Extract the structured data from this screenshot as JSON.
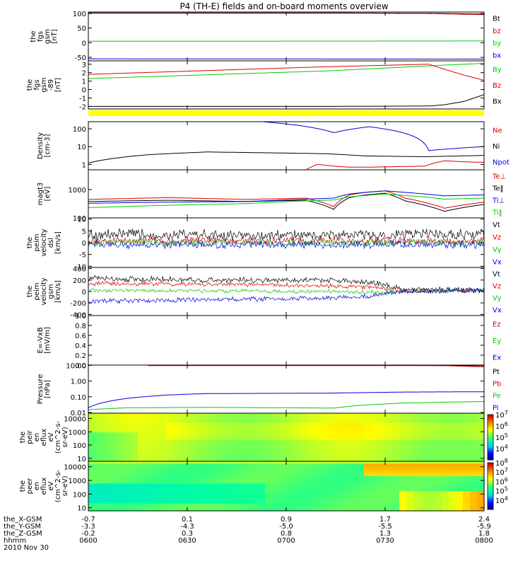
{
  "title": "P4 (TH-E) fields and on-board moments overview",
  "colors": {
    "black": "#000000",
    "red": "#dd0000",
    "green": "#00cc00",
    "blue": "#0000dd",
    "yellow": "#ffff00"
  },
  "chart_data": [
    {
      "type": "line",
      "ylabel": [
        "the",
        "fgs",
        "gsm",
        "[nT]"
      ],
      "yticks": [
        {
          "v": 100,
          "label": "100"
        },
        {
          "v": 50,
          "label": "50"
        },
        {
          "v": 0,
          "label": "0"
        },
        {
          "v": -50,
          "label": "-50"
        }
      ],
      "ylim": [
        -62,
        105
      ],
      "grid": false,
      "series": [
        {
          "name": "Bt",
          "color": "black",
          "x": [
            0,
            0.6,
            0.85,
            1
          ],
          "y": [
            102,
            102,
            101,
            98
          ]
        },
        {
          "name": "bz",
          "color": "red",
          "x": [
            0,
            0.6,
            0.85,
            1
          ],
          "y": [
            101,
            101,
            100,
            96
          ]
        },
        {
          "name": "by",
          "color": "green",
          "x": [
            0,
            0.6,
            1
          ],
          "y": [
            5,
            5.5,
            6
          ]
        },
        {
          "name": "bx",
          "color": "blue",
          "x": [
            0,
            1
          ],
          "y": [
            -55,
            -56
          ]
        }
      ]
    },
    {
      "type": "line",
      "ylabel": [
        "the",
        "fgs",
        "gsm",
        "-89",
        "[nT]"
      ],
      "yticks": [
        {
          "v": 3,
          "label": "3"
        },
        {
          "v": 2,
          "label": "2"
        },
        {
          "v": 1,
          "label": "1"
        },
        {
          "v": 0,
          "label": "0"
        },
        {
          "v": -1,
          "label": "-1"
        },
        {
          "v": -2,
          "label": "-2"
        }
      ],
      "ylim": [
        -2.3,
        3.4
      ],
      "grid": false,
      "series": [
        {
          "name": "By",
          "color": "green",
          "x": [
            0,
            0.6,
            0.86,
            0.9,
            0.95,
            1
          ],
          "y": [
            1.3,
            2.2,
            2.8,
            2.9,
            3.0,
            3.1
          ]
        },
        {
          "name": "Bz",
          "color": "red",
          "x": [
            0,
            0.6,
            0.86,
            0.9,
            0.95,
            1
          ],
          "y": [
            1.8,
            2.7,
            3.0,
            2.4,
            1.7,
            1.1
          ]
        },
        {
          "name": "Bx",
          "color": "black",
          "x": [
            0,
            0.6,
            0.86,
            0.9,
            0.95,
            1
          ],
          "y": [
            -2.0,
            -2.0,
            -1.95,
            -1.8,
            -1.4,
            -0.6
          ]
        }
      ],
      "band_color": "yellow"
    },
    {
      "type": "line",
      "scale": "log",
      "ylabel": [
        "Density",
        "[cm-3]"
      ],
      "yticks": [
        {
          "v": 100,
          "label": "100"
        },
        {
          "v": 10,
          "label": "10"
        },
        {
          "v": 1,
          "label": "1"
        }
      ],
      "ylim": [
        0.5,
        250
      ],
      "grid": false,
      "series": [
        {
          "name": "Ne",
          "color": "red",
          "x": [
            0,
            0.3,
            0.55,
            0.58,
            0.62,
            0.66,
            0.7,
            0.85,
            0.9,
            0.95,
            1
          ],
          "y": [
            0.5,
            0.5,
            0.5,
            1.0,
            0.8,
            0.7,
            0.7,
            0.8,
            1.6,
            1.4,
            1.3
          ]
        },
        {
          "name": "Ni",
          "color": "black",
          "x": [
            0,
            0.15,
            0.3,
            0.45,
            0.6,
            0.7,
            0.85,
            1
          ],
          "y": [
            1.2,
            3.5,
            5,
            4.5,
            4,
            3.0,
            2.7,
            3.2
          ]
        },
        {
          "name": "Npot",
          "color": "blue",
          "x": [
            0.44,
            0.62,
            0.71,
            0.86,
            1
          ],
          "y": [
            250,
            60,
            130,
            6,
            10
          ]
        }
      ]
    },
    {
      "type": "line",
      "scale": "log",
      "ylabel": [
        "magt3",
        "[eV]"
      ],
      "yticks": [
        {
          "v": 1000,
          "label": "1000"
        },
        {
          "v": 100,
          "label": "100"
        }
      ],
      "ylim": [
        100,
        5000
      ],
      "grid": false,
      "series": [
        {
          "name": "Te⊥",
          "color": "red",
          "x": [
            0,
            0.2,
            0.4,
            0.55,
            0.62,
            0.66,
            0.7,
            0.75,
            0.8,
            0.85,
            0.9,
            1
          ],
          "y": [
            450,
            520,
            450,
            500,
            250,
            650,
            800,
            900,
            500,
            350,
            220,
            360
          ]
        },
        {
          "name": "Te‖",
          "color": "black",
          "x": [
            0,
            0.2,
            0.4,
            0.55,
            0.62,
            0.66,
            0.7,
            0.75,
            0.8,
            0.85,
            0.9,
            1
          ],
          "y": [
            380,
            420,
            380,
            420,
            200,
            520,
            650,
            750,
            400,
            280,
            170,
            300
          ]
        },
        {
          "name": "Ti⊥",
          "color": "blue",
          "x": [
            0,
            0.2,
            0.4,
            0.55,
            0.62,
            0.66,
            0.7,
            0.75,
            0.8,
            0.85,
            0.9,
            1
          ],
          "y": [
            330,
            360,
            380,
            460,
            500,
            700,
            800,
            900,
            800,
            700,
            600,
            650
          ]
        },
        {
          "name": "Ti‖",
          "color": "green",
          "x": [
            0,
            0.2,
            0.4,
            0.55,
            0.62,
            0.66,
            0.7,
            0.75,
            0.8,
            0.85,
            0.9,
            1
          ],
          "y": [
            230,
            280,
            320,
            400,
            430,
            550,
            620,
            700,
            620,
            550,
            460,
            500
          ]
        }
      ]
    },
    {
      "type": "line",
      "noisy": true,
      "ylabel": [
        "the",
        "peim",
        "velocity",
        "dsl",
        "[km/s]"
      ],
      "yticks": [
        {
          "v": 10,
          "label": "10"
        },
        {
          "v": 5,
          "label": "5"
        },
        {
          "v": 0,
          "label": "0"
        },
        {
          "v": -5,
          "label": "-5"
        },
        {
          "v": -10,
          "label": "-10"
        }
      ],
      "ylim": [
        -10.5,
        10.5
      ],
      "grid": false,
      "series": [
        {
          "name": "Vt",
          "color": "black",
          "x": [
            0,
            0.5,
            1
          ],
          "y": [
            3.5,
            3.0,
            3.5
          ],
          "amp": 2.5
        },
        {
          "name": "Vz",
          "color": "red",
          "x": [
            0,
            1
          ],
          "y": [
            0.8,
            0.8
          ],
          "amp": 1.6
        },
        {
          "name": "Vy",
          "color": "green",
          "x": [
            0,
            1
          ],
          "y": [
            0,
            0
          ],
          "amp": 1.5
        },
        {
          "name": "Vx",
          "color": "blue",
          "x": [
            0,
            1
          ],
          "y": [
            -0.8,
            -0.8
          ],
          "amp": 1.8
        }
      ]
    },
    {
      "type": "line",
      "noisy": true,
      "ylabel": [
        "the",
        "peim",
        "velocity",
        "gsm",
        "[km/s]"
      ],
      "yticks": [
        {
          "v": 400,
          "label": "400"
        },
        {
          "v": 200,
          "label": "200"
        },
        {
          "v": 0,
          "label": "0"
        },
        {
          "v": -200,
          "label": "-200"
        },
        {
          "v": -400,
          "label": "-400"
        }
      ],
      "ylim": [
        -420,
        420
      ],
      "grid": false,
      "series": [
        {
          "name": "Vt",
          "color": "black",
          "x": [
            0,
            0.3,
            0.6,
            0.7,
            0.8,
            1
          ],
          "y": [
            230,
            200,
            200,
            180,
            30,
            30
          ],
          "amp": 55
        },
        {
          "name": "Vz",
          "color": "red",
          "x": [
            0,
            0.3,
            0.6,
            0.7,
            0.8,
            1
          ],
          "y": [
            140,
            130,
            100,
            80,
            10,
            20
          ],
          "amp": 40
        },
        {
          "name": "Vy",
          "color": "green",
          "x": [
            0,
            0.3,
            0.6,
            0.7,
            0.8,
            1
          ],
          "y": [
            20,
            10,
            0,
            -10,
            0,
            10
          ],
          "amp": 35
        },
        {
          "name": "Vx",
          "color": "blue",
          "x": [
            0,
            0.3,
            0.6,
            0.7,
            0.8,
            1
          ],
          "y": [
            -170,
            -140,
            -120,
            -90,
            0,
            20
          ],
          "amp": 45
        }
      ]
    },
    {
      "type": "line",
      "ylabel": [
        "E=-VxB",
        "[mV/m]"
      ],
      "yticks": [
        {
          "v": 1,
          "label": "1.0"
        },
        {
          "v": 0.8,
          "label": "0.8"
        },
        {
          "v": 0.6,
          "label": "0.6"
        },
        {
          "v": 0.4,
          "label": "0.4"
        },
        {
          "v": 0.2,
          "label": "0.2"
        },
        {
          "v": 0,
          "label": "0.0"
        }
      ],
      "ylim": [
        0,
        1
      ],
      "grid": false,
      "series": [
        {
          "name": "Ez",
          "color": "red",
          "x": [],
          "y": []
        },
        {
          "name": "Ey",
          "color": "green",
          "x": [],
          "y": []
        },
        {
          "name": "Ex",
          "color": "blue",
          "x": [],
          "y": []
        }
      ]
    },
    {
      "type": "line",
      "scale": "log",
      "ylabel": [
        "Pressure",
        "[nPa]"
      ],
      "yticks": [
        {
          "v": 10,
          "label": "10.00"
        },
        {
          "v": 1,
          "label": "1.00"
        },
        {
          "v": 0.1,
          "label": "0.10"
        },
        {
          "v": 0.01,
          "label": "0.01"
        }
      ],
      "ylim": [
        0.009,
        10.5
      ],
      "grid": false,
      "series": [
        {
          "name": "Pt",
          "color": "black",
          "x": [
            0.15,
            0.8,
            1
          ],
          "y": [
            10,
            10,
            9.5
          ]
        },
        {
          "name": "Pb",
          "color": "red",
          "x": [
            0.15,
            0.8,
            0.9,
            1
          ],
          "y": [
            9.8,
            9.8,
            9.6,
            8
          ]
        },
        {
          "name": "Pe",
          "color": "green",
          "x": [
            0,
            0.1,
            0.3,
            0.5,
            0.62,
            0.7,
            0.8,
            0.9,
            1
          ],
          "y": [
            0.015,
            0.02,
            0.021,
            0.02,
            0.019,
            0.03,
            0.04,
            0.045,
            0.05
          ]
        },
        {
          "name": "Pi",
          "color": "blue",
          "x": [
            0,
            0.1,
            0.2,
            0.3,
            0.6,
            0.8,
            1
          ],
          "y": [
            0.02,
            0.08,
            0.13,
            0.16,
            0.17,
            0.2,
            0.21
          ]
        }
      ]
    },
    {
      "type": "heatmap",
      "ylabel": [
        "the",
        "peir",
        "en",
        "eflux",
        "eV",
        "(cm^2-s-",
        "sr-eV)"
      ],
      "yticks": [
        {
          "v": 10000,
          "label": "10000"
        },
        {
          "v": 1000,
          "label": "1000"
        },
        {
          "v": 100,
          "label": "100"
        },
        {
          "v": 10,
          "label": "10"
        }
      ],
      "ylim": [
        6,
        25000
      ],
      "colorbar": {
        "min_exp": 3,
        "max_exp": 7,
        "labels": [
          "10^7",
          "10^6",
          "10^5",
          "10^4"
        ]
      }
    },
    {
      "type": "heatmap",
      "ylabel": [
        "the",
        "peer",
        "en",
        "eflux",
        "eV",
        "(cm^2-s-",
        "sr-eV)"
      ],
      "yticks": [
        {
          "v": 10000,
          "label": "10000"
        },
        {
          "v": 1000,
          "label": "1000"
        },
        {
          "v": 100,
          "label": "100"
        },
        {
          "v": 10,
          "label": "10"
        }
      ],
      "ylim": [
        6,
        25000
      ],
      "colorbar": {
        "min_exp": 3,
        "max_exp": 8,
        "labels": [
          "10^8",
          "10^7",
          "10^6",
          "10^5",
          "10^4"
        ]
      }
    }
  ],
  "time_axis": {
    "row_labels": [
      "the_X-GSM",
      "the_Y-GSM",
      "the_Z-GSM",
      "hhmm",
      "2010 Nov 30"
    ],
    "ticks": [
      {
        "x": 0,
        "values": [
          "-0.7",
          "-3.3",
          "-0.2",
          "0600"
        ]
      },
      {
        "x": 0.25,
        "values": [
          "0.1",
          "-4.3",
          "0.3",
          "0630"
        ]
      },
      {
        "x": 0.5,
        "values": [
          "0.9",
          "-5.0",
          "0.8",
          "0700"
        ]
      },
      {
        "x": 0.75,
        "values": [
          "1.7",
          "-5.5",
          "1.3",
          "0730"
        ]
      },
      {
        "x": 1,
        "values": [
          "2.4",
          "-5.9",
          "1.8",
          "0800"
        ]
      }
    ]
  }
}
